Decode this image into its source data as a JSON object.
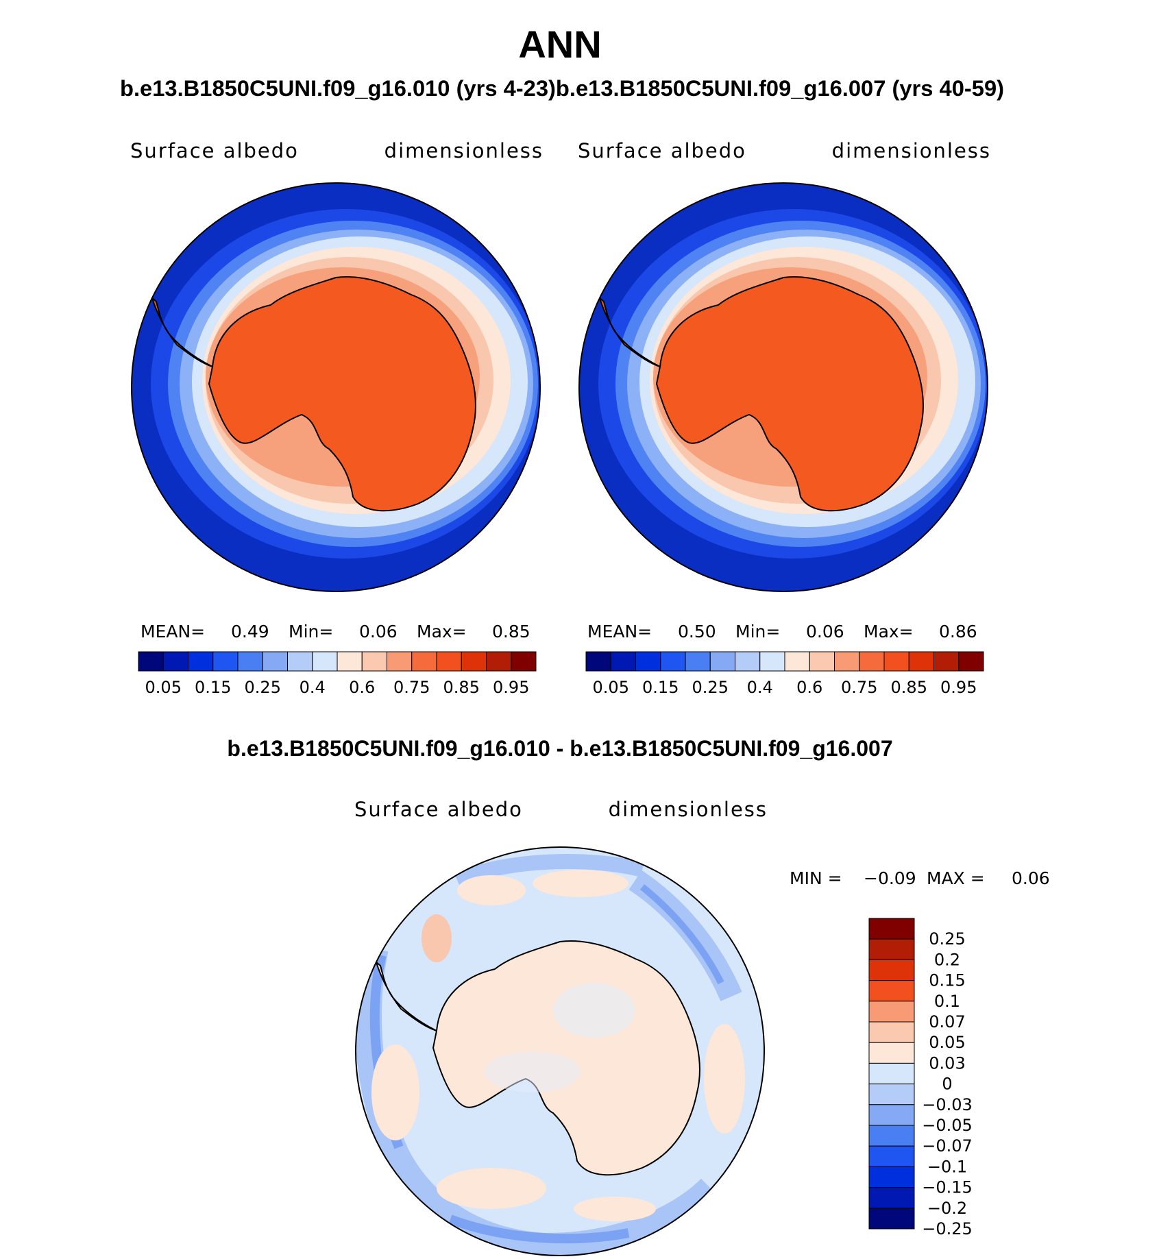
{
  "title": "ANN",
  "subtitle": "b.e13.B1850C5UNI.f09_g16.010 (yrs 4-23)b.e13.B1850C5UNI.f09_g16.007 (yrs 40-59)",
  "diff_title": "b.e13.B1850C5UNI.f09_g16.010 - b.e13.B1850C5UNI.f09_g16.007",
  "colors": {
    "abs_palette": [
      "#00077a",
      "#0019b3",
      "#0030dd",
      "#1f55f0",
      "#4a7ef3",
      "#86a9f5",
      "#b4cdf8",
      "#d6e6fb",
      "#fde7d8",
      "#fbc8b0",
      "#f89a73",
      "#f56b3c",
      "#f2501e",
      "#de3308",
      "#b21e05",
      "#800000"
    ],
    "diff_palette": [
      "#00077a",
      "#0019b3",
      "#0030dd",
      "#1f55f0",
      "#4a7ef3",
      "#86a9f5",
      "#b4cdf8",
      "#d6e6fb",
      "#fde7d8",
      "#fbc8b0",
      "#f89a73",
      "#f2501e",
      "#de3308",
      "#b21e05",
      "#800000"
    ],
    "ocean_deep": "#0a2ec2",
    "ice_orange": "#f45a1f"
  },
  "chart_data": [
    {
      "type": "heatmap",
      "panel": "left",
      "variable": "Surface albedo",
      "units": "dimensionless",
      "stats": {
        "mean_label": "MEAN=",
        "mean": "0.49",
        "min_label": "Min=",
        "min": "0.06",
        "max_label": "Max=",
        "max": "0.85"
      },
      "colorbar_ticks": [
        "0.05",
        "0.15",
        "0.25",
        "0.4",
        "0.6",
        "0.75",
        "0.85",
        "0.95"
      ],
      "projection": "south-polar-stereographic"
    },
    {
      "type": "heatmap",
      "panel": "right",
      "variable": "Surface albedo",
      "units": "dimensionless",
      "stats": {
        "mean_label": "MEAN=",
        "mean": "0.50",
        "min_label": "Min=",
        "min": "0.06",
        "max_label": "Max=",
        "max": "0.86"
      },
      "colorbar_ticks": [
        "0.05",
        "0.15",
        "0.25",
        "0.4",
        "0.6",
        "0.75",
        "0.85",
        "0.95"
      ],
      "projection": "south-polar-stereographic"
    },
    {
      "type": "heatmap",
      "panel": "difference",
      "variable": "Surface albedo",
      "units": "dimensionless",
      "stats": {
        "min_label": "MIN =",
        "min": "−0.09",
        "max_label": "MAX =",
        "max": "0.06"
      },
      "colorbar_ticks": [
        "0.25",
        "0.2",
        "0.15",
        "0.1",
        "0.07",
        "0.05",
        "0.03",
        "0",
        "−0.03",
        "−0.05",
        "−0.07",
        "−0.1",
        "−0.15",
        "−0.2",
        "−0.25"
      ],
      "projection": "south-polar-stereographic"
    }
  ]
}
